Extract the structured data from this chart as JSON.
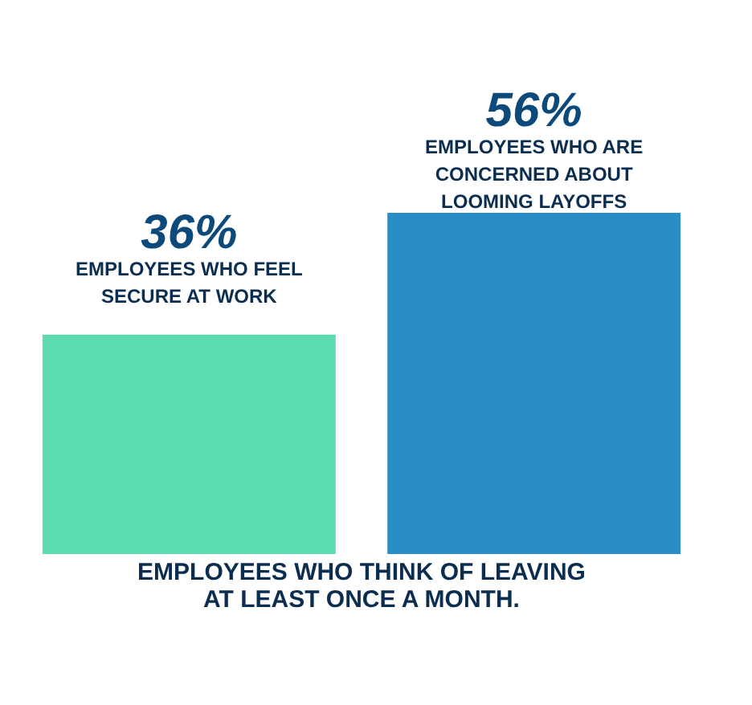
{
  "chart_data": {
    "type": "bar",
    "title": "EMPLOYEES WHO THINK OF LEAVING AT LEAST ONCE A MONTH.",
    "categories": [
      "EMPLOYEES WHO FEEL SECURE AT WORK",
      "EMPLOYEES WHO ARE CONCERNED ABOUT LOOMING LAYOFFS"
    ],
    "values": [
      36,
      56
    ],
    "colors": [
      "#5ddcb4",
      "#2a8ec6"
    ],
    "value_labels": [
      "36%",
      "56%"
    ]
  }
}
